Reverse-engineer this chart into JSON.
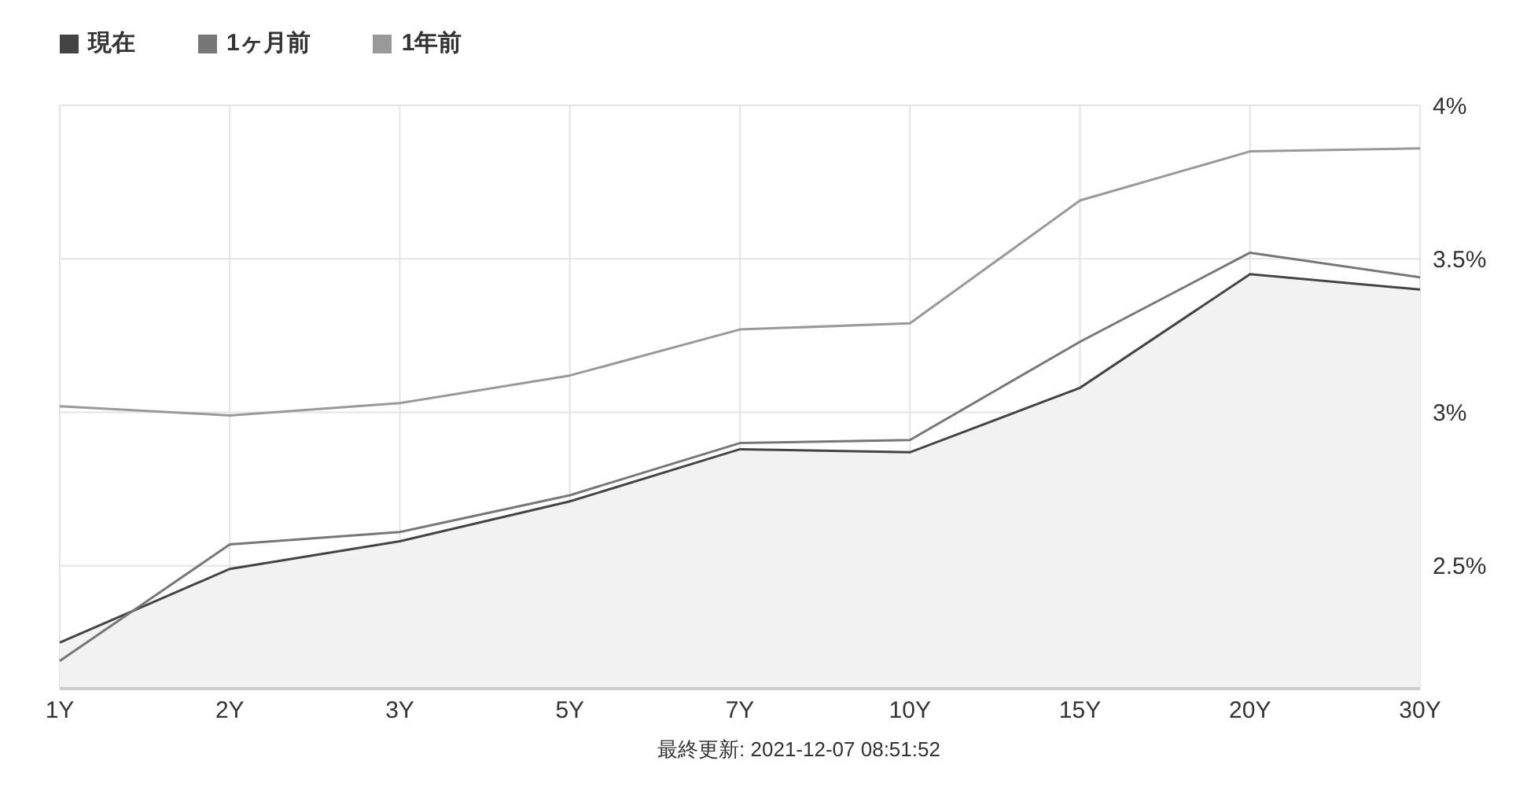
{
  "chart_data": {
    "type": "line",
    "categories": [
      "1Y",
      "2Y",
      "3Y",
      "5Y",
      "7Y",
      "10Y",
      "15Y",
      "20Y",
      "30Y"
    ],
    "series": [
      {
        "name": "現在",
        "type": "area",
        "color": "#444444",
        "values": [
          2.25,
          2.49,
          2.58,
          2.71,
          2.88,
          2.87,
          3.08,
          3.45,
          3.4
        ]
      },
      {
        "name": "1ヶ月前",
        "color": "#777777",
        "values": [
          2.19,
          2.57,
          2.61,
          2.73,
          2.9,
          2.91,
          3.23,
          3.52,
          3.44
        ]
      },
      {
        "name": "1年前",
        "color": "#999999",
        "values": [
          3.02,
          2.99,
          3.03,
          3.12,
          3.27,
          3.29,
          3.69,
          3.85,
          3.86
        ]
      }
    ],
    "ylim": [
      2.1,
      4
    ],
    "yticks": [
      {
        "value": 2.5,
        "label": "2.5%"
      },
      {
        "value": 3,
        "label": "3%"
      },
      {
        "value": 3.5,
        "label": "3.5%"
      },
      {
        "value": 4,
        "label": "4%"
      }
    ],
    "grid": true,
    "legend": "top left",
    "marker": "none",
    "annotations": [
      "最終更新: 2021-12-07 08:51:52"
    ]
  }
}
